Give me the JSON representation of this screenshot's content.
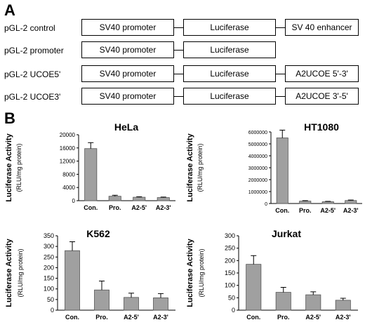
{
  "panel_a": {
    "letter": "A",
    "constructs": [
      {
        "name": "pGL-2 control",
        "elements": [
          "SV40 promoter",
          "Luciferase",
          "SV 40 enhancer"
        ]
      },
      {
        "name": "pGL-2 promoter",
        "elements": [
          "SV40 promoter",
          "Luciferase"
        ]
      },
      {
        "name": "pGL-2 UCOE5'",
        "elements": [
          "SV40 promoter",
          "Luciferase",
          "A2UCOE 5'-3'"
        ]
      },
      {
        "name": "pGL-2 UCOE3'",
        "elements": [
          "SV40 promoter",
          "Luciferase",
          "A2UCOE 3'-5'"
        ]
      }
    ]
  },
  "panel_b": {
    "letter": "B",
    "ylabel_main": "Luciferase Activity",
    "ylabel_sub": "(RLU/mg protein)"
  },
  "chart_data": [
    {
      "type": "bar",
      "title": "HeLa",
      "categories": [
        "Con.",
        "Pro.",
        "A2-5'",
        "A2-3'"
      ],
      "values": [
        15800,
        1350,
        1050,
        950
      ],
      "errors": [
        1800,
        300,
        150,
        150
      ],
      "ylim": [
        0,
        20000
      ],
      "yticks": [
        0,
        4000,
        8000,
        12000,
        16000,
        20000
      ],
      "ylabel": "Luciferase Activity (RLU/mg protein)",
      "bar_color": "#a0a0a0"
    },
    {
      "type": "bar",
      "title": "HT1080",
      "categories": [
        "Con.",
        "Pro.",
        "A2-5'",
        "A2-3'"
      ],
      "values": [
        5500000,
        200000,
        150000,
        250000
      ],
      "errors": [
        650000,
        40000,
        30000,
        40000
      ],
      "ylim": [
        0,
        6000000
      ],
      "yticks": [
        0,
        1000000,
        2000000,
        3000000,
        4000000,
        5000000,
        6000000
      ],
      "ylabel": "Luciferase Activity (RLU/mg protein)",
      "bar_color": "#a0a0a0"
    },
    {
      "type": "bar",
      "title": "K562",
      "categories": [
        "Con.",
        "Pro.",
        "A2-5'",
        "A2-3'"
      ],
      "values": [
        280,
        95,
        60,
        58
      ],
      "errors": [
        42,
        42,
        20,
        20
      ],
      "ylim": [
        0,
        350
      ],
      "yticks": [
        0,
        50,
        100,
        150,
        200,
        250,
        300,
        350
      ],
      "ylabel": "Luciferase Activity (RLU/mg protein)",
      "bar_color": "#a0a0a0"
    },
    {
      "type": "bar",
      "title": "Jurkat",
      "categories": [
        "Con.",
        "Pro.",
        "A2-5'",
        "A2-3'"
      ],
      "values": [
        185,
        72,
        62,
        40
      ],
      "errors": [
        35,
        20,
        12,
        8
      ],
      "ylim": [
        0,
        300
      ],
      "yticks": [
        0,
        50,
        100,
        150,
        200,
        250,
        300
      ],
      "ylabel": "Luciferase Activity (RLU/mg protein)",
      "bar_color": "#a0a0a0"
    }
  ]
}
